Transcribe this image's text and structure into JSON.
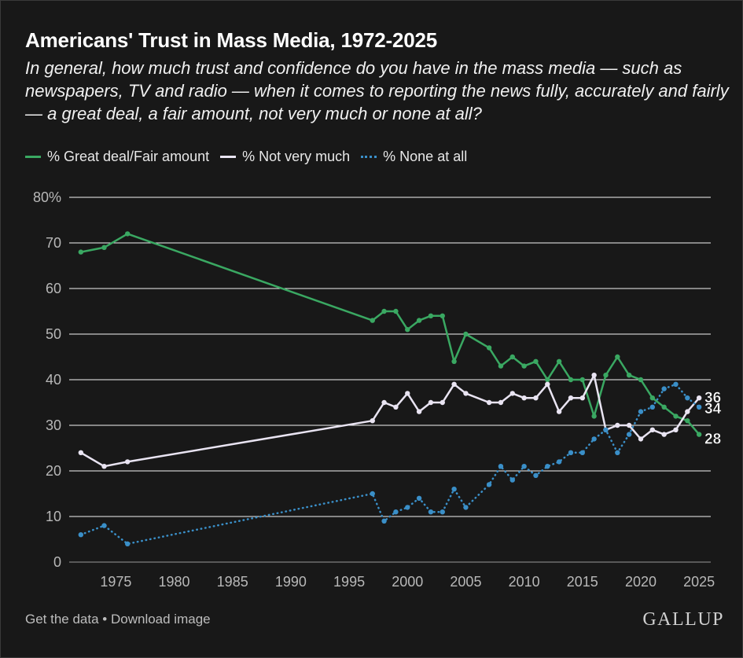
{
  "header": {
    "title": "Americans' Trust in Mass Media, 1972-2025",
    "subtitle": "In general, how much trust and confidence do you have in the mass media — such as newspapers, TV and radio — when it comes to reporting the news fully, accurately and fairly — a great deal, a fair amount, not very much or none at all?"
  },
  "footer": {
    "get_data": "Get the data",
    "separator": " • ",
    "download": "Download image",
    "logo": "GALLUP"
  },
  "colors": {
    "background": "#181818",
    "grid": "#ffffff",
    "axis_text": "#b8b8b8",
    "great_deal": "#3aa862",
    "not_very_much": "#e9e4f2",
    "none_at_all": "#3a8fc8"
  },
  "chart_data": {
    "type": "line",
    "xlim": [
      1971,
      2026
    ],
    "ylim": [
      0,
      80
    ],
    "x_ticks": [
      1975,
      1980,
      1985,
      1990,
      1995,
      2000,
      2005,
      2010,
      2015,
      2020,
      2025
    ],
    "y_ticks": [
      0,
      10,
      20,
      30,
      40,
      50,
      60,
      70,
      80
    ],
    "y_tick_labels": [
      "0",
      "10",
      "20",
      "30",
      "40",
      "50",
      "60",
      "70",
      "80%"
    ],
    "grid": "horizontal",
    "legend_position": "top-left",
    "series": [
      {
        "name": "% Great deal/Fair amount",
        "style": "solid",
        "color": "#3aa862",
        "end_label": "28",
        "points": [
          [
            1972,
            68
          ],
          [
            1974,
            69
          ],
          [
            1976,
            72
          ],
          [
            1997,
            53
          ],
          [
            1998,
            55
          ],
          [
            1999,
            55
          ],
          [
            2000,
            51
          ],
          [
            2001,
            53
          ],
          [
            2002,
            54
          ],
          [
            2003,
            54
          ],
          [
            2004,
            44
          ],
          [
            2005,
            50
          ],
          [
            2007,
            47
          ],
          [
            2008,
            43
          ],
          [
            2009,
            45
          ],
          [
            2010,
            43
          ],
          [
            2011,
            44
          ],
          [
            2012,
            40
          ],
          [
            2013,
            44
          ],
          [
            2014,
            40
          ],
          [
            2015,
            40
          ],
          [
            2016,
            32
          ],
          [
            2017,
            41
          ],
          [
            2018,
            45
          ],
          [
            2019,
            41
          ],
          [
            2020,
            40
          ],
          [
            2021,
            36
          ],
          [
            2022,
            34
          ],
          [
            2023,
            32
          ],
          [
            2024,
            31
          ],
          [
            2025,
            28
          ]
        ]
      },
      {
        "name": "% Not very much",
        "style": "solid",
        "color": "#e9e4f2",
        "end_label": "36",
        "points": [
          [
            1972,
            24
          ],
          [
            1974,
            21
          ],
          [
            1976,
            22
          ],
          [
            1997,
            31
          ],
          [
            1998,
            35
          ],
          [
            1999,
            34
          ],
          [
            2000,
            37
          ],
          [
            2001,
            33
          ],
          [
            2002,
            35
          ],
          [
            2003,
            35
          ],
          [
            2004,
            39
          ],
          [
            2005,
            37
          ],
          [
            2007,
            35
          ],
          [
            2008,
            35
          ],
          [
            2009,
            37
          ],
          [
            2010,
            36
          ],
          [
            2011,
            36
          ],
          [
            2012,
            39
          ],
          [
            2013,
            33
          ],
          [
            2014,
            36
          ],
          [
            2015,
            36
          ],
          [
            2016,
            41
          ],
          [
            2017,
            29
          ],
          [
            2018,
            30
          ],
          [
            2019,
            30
          ],
          [
            2020,
            27
          ],
          [
            2021,
            29
          ],
          [
            2022,
            28
          ],
          [
            2023,
            29
          ],
          [
            2024,
            33
          ],
          [
            2025,
            36
          ]
        ]
      },
      {
        "name": "% None at all",
        "style": "dotted",
        "color": "#3a8fc8",
        "end_label": "34",
        "points": [
          [
            1972,
            6
          ],
          [
            1974,
            8
          ],
          [
            1976,
            4
          ],
          [
            1997,
            15
          ],
          [
            1998,
            9
          ],
          [
            1999,
            11
          ],
          [
            2000,
            12
          ],
          [
            2001,
            14
          ],
          [
            2002,
            11
          ],
          [
            2003,
            11
          ],
          [
            2004,
            16
          ],
          [
            2005,
            12
          ],
          [
            2007,
            17
          ],
          [
            2008,
            21
          ],
          [
            2009,
            18
          ],
          [
            2010,
            21
          ],
          [
            2011,
            19
          ],
          [
            2012,
            21
          ],
          [
            2013,
            22
          ],
          [
            2014,
            24
          ],
          [
            2015,
            24
          ],
          [
            2016,
            27
          ],
          [
            2017,
            29
          ],
          [
            2018,
            24
          ],
          [
            2019,
            28
          ],
          [
            2020,
            33
          ],
          [
            2021,
            34
          ],
          [
            2022,
            38
          ],
          [
            2023,
            39
          ],
          [
            2024,
            36
          ],
          [
            2025,
            34
          ]
        ]
      }
    ]
  }
}
